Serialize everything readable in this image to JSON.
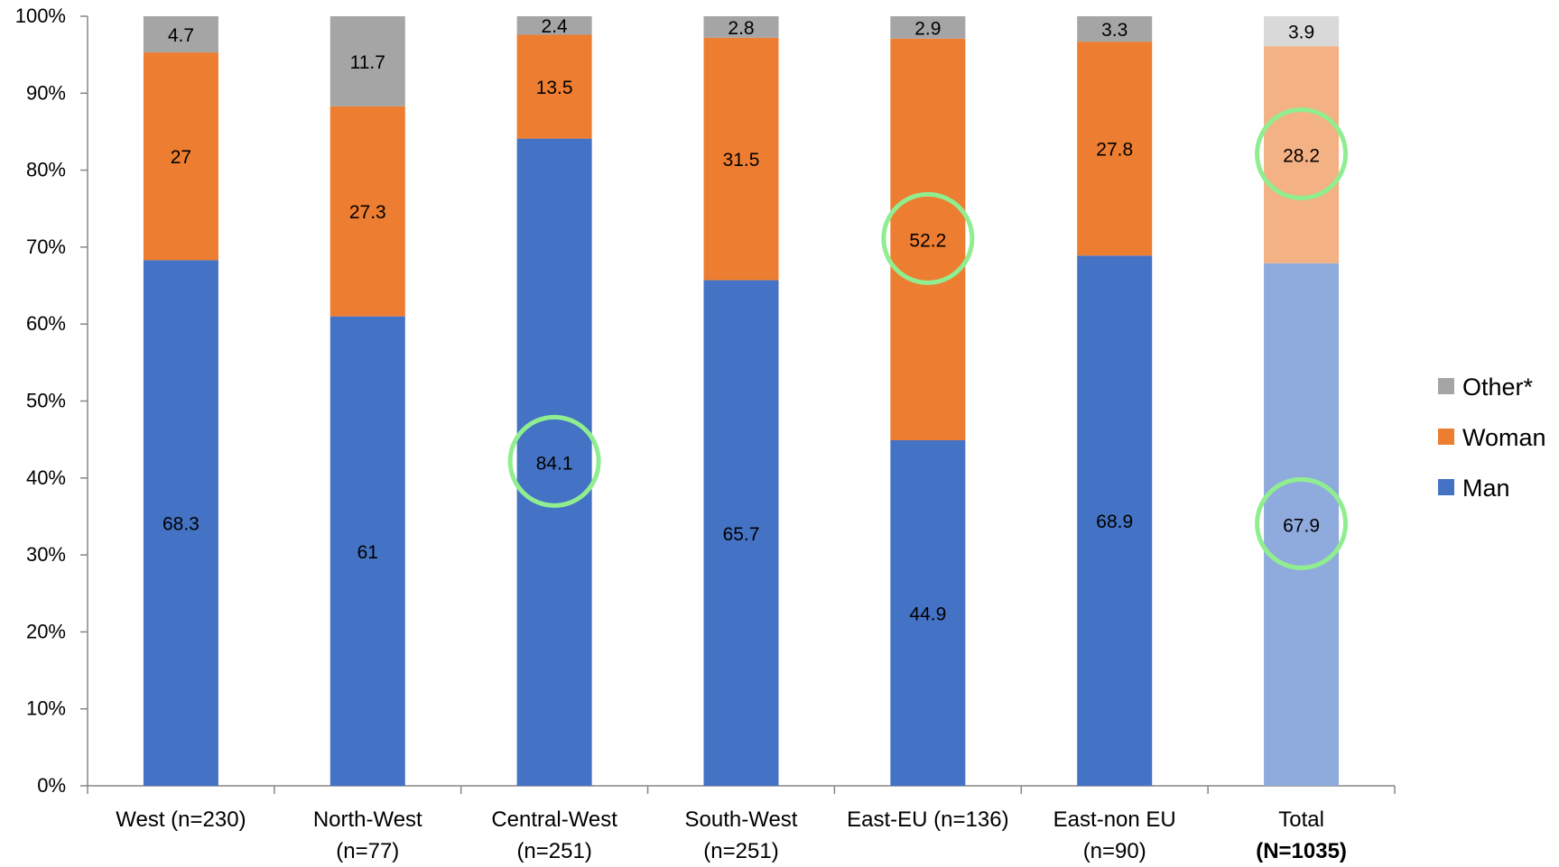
{
  "chart_data": {
    "type": "bar",
    "stacked": true,
    "categories": [
      [
        "West (n=230)"
      ],
      [
        "North-West",
        "(n=77)"
      ],
      [
        "Central-West",
        "(n=251)"
      ],
      [
        "South-West",
        "(n=251)"
      ],
      [
        "East-EU (n=136)"
      ],
      [
        "East-non EU",
        "(n=90)"
      ],
      [
        "Total",
        "(N=1035)"
      ]
    ],
    "series": [
      {
        "name": "Man",
        "color": "#4472C4",
        "values": [
          68.3,
          61,
          84.1,
          65.7,
          44.9,
          68.9,
          67.9
        ]
      },
      {
        "name": "Woman",
        "color": "#ED7D31",
        "values": [
          27,
          27.3,
          13.5,
          31.5,
          52.2,
          27.8,
          28.2
        ]
      },
      {
        "name": "Other*",
        "color": "#A5A5A5",
        "values": [
          4.7,
          11.7,
          2.4,
          2.8,
          2.9,
          3.3,
          3.9
        ]
      }
    ],
    "faded_category_index": 6,
    "faded_colors": {
      "Man": "#8FAADC",
      "Woman": "#F4B183",
      "Other*": "#D9D9D9"
    },
    "highlighted": [
      {
        "category_index": 2,
        "series": "Man"
      },
      {
        "category_index": 4,
        "series": "Woman"
      },
      {
        "category_index": 6,
        "series": "Woman"
      },
      {
        "category_index": 6,
        "series": "Man"
      }
    ],
    "highlight_color": "#90EE90",
    "yticks": [
      "0%",
      "10%",
      "20%",
      "30%",
      "40%",
      "50%",
      "60%",
      "70%",
      "80%",
      "90%",
      "100%"
    ],
    "ylim": [
      0,
      100
    ],
    "legend": {
      "position": "right",
      "order": [
        "Other*",
        "Woman",
        "Man"
      ]
    },
    "grid": false
  }
}
